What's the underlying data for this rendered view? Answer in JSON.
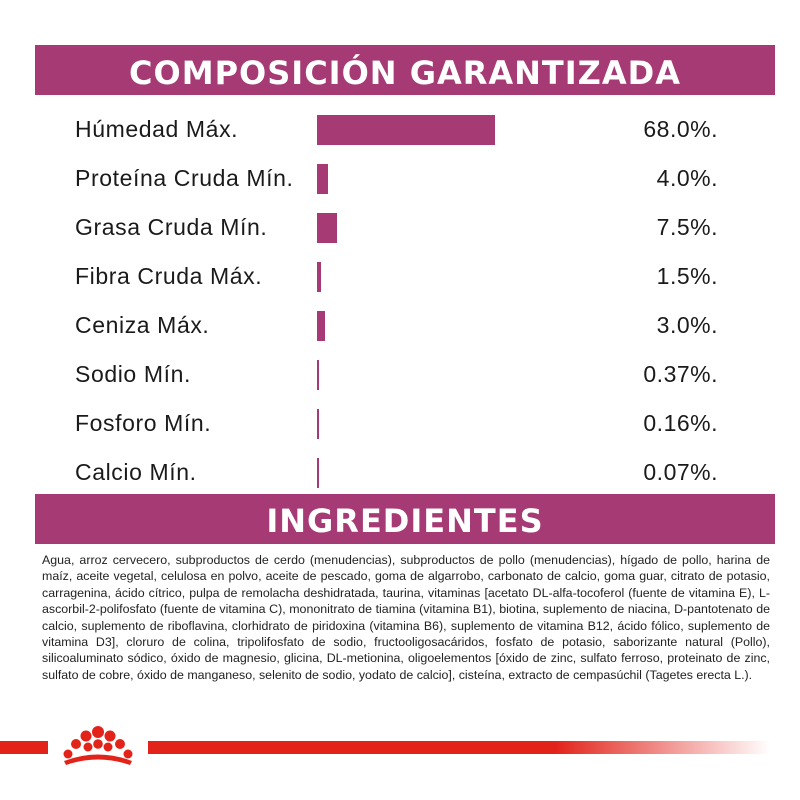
{
  "composition": {
    "title": "COMPOSICIÓN GARANTIZADA",
    "rows": [
      {
        "label": "Húmedad Máx.",
        "value": "68.0%.",
        "percent": 68.0
      },
      {
        "label": "Proteína Cruda Mín.",
        "value": "4.0%.",
        "percent": 4.0
      },
      {
        "label": "Grasa Cruda Mín.",
        "value": "7.5%.",
        "percent": 7.5
      },
      {
        "label": "Fibra Cruda Máx.",
        "value": "1.5%.",
        "percent": 1.5
      },
      {
        "label": "Ceniza Máx.",
        "value": "3.0%.",
        "percent": 3.0
      },
      {
        "label": "Sodio Mín.",
        "value": "0.37%.",
        "percent": 0.37
      },
      {
        "label": "Fosforo Mín.",
        "value": "0.16%.",
        "percent": 0.16
      },
      {
        "label": "Calcio Mín.",
        "value": "0.07%.",
        "percent": 0.07
      }
    ]
  },
  "ingredients": {
    "title": "INGREDIENTES",
    "text": "Agua, arroz cervecero, subproductos de cerdo (menudencias), subproductos de pollo (menudencias), hígado de pollo, harina de maíz, aceite vegetal, celulosa en polvo, aceite de pescado, goma de algarrobo, carbonato de calcio, goma guar, citrato de potasio, carragenina, ácido cítrico, pulpa de remolacha deshidratada, taurina, vitaminas [acetato DL-alfa-tocoferol (fuente de vitamina E), L-ascorbil-2-polifosfato (fuente de vitamina C), mononitrato de tiamina (vitamina B1), biotina, suplemento de niacina, D-pantotenato de calcio, suplemento de riboflavina, clorhidrato de piridoxina (vitamina B6), suplemento de vitamina B12, ácido fólico, suplemento de vitamina D3], cloruro de colina, tripolifosfato de sodio, fructooligosacáridos, fosfato de potasio, saborizante natural (Pollo), silicoaluminato sódico, óxido de magnesio, glicina, DL-metionina, oligoelementos [óxido de zinc, sulfato ferroso, proteinato de zinc, sulfato de cobre, óxido de manganeso, selenito de sodio, yodato de calcio], cisteína, extracto de cempasúchil (Tagetes erecta L.)."
  },
  "colors": {
    "accent": "#a63a74",
    "brand_red": "#e2231a"
  },
  "footer": {
    "logo_icon": "royal-canin-crown-icon"
  }
}
